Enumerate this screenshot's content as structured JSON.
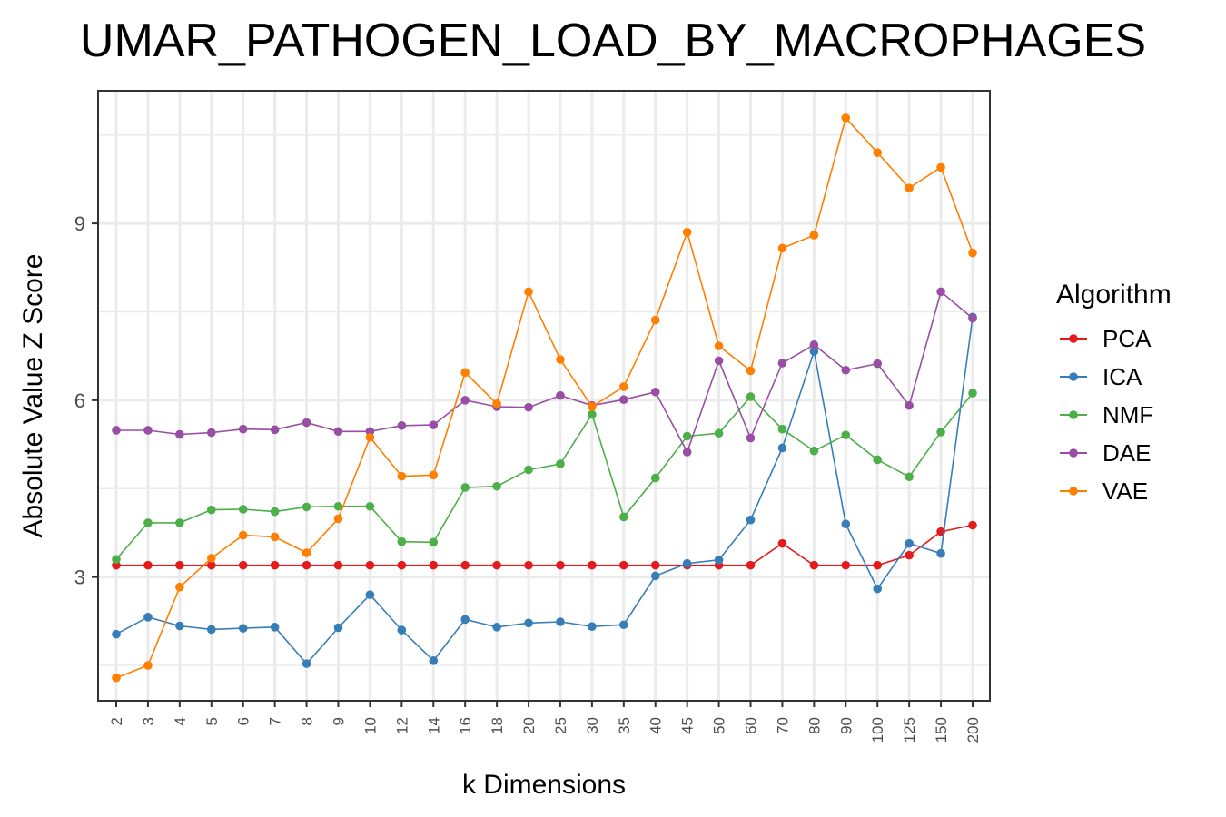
{
  "chart_data": {
    "type": "line",
    "title": "UMAR_PATHOGEN_LOAD_BY_MACROPHAGES",
    "xlabel": "k Dimensions",
    "ylabel": "Absolute Value Z Score",
    "categories": [
      "2",
      "3",
      "4",
      "5",
      "6",
      "7",
      "8",
      "9",
      "10",
      "12",
      "14",
      "16",
      "18",
      "20",
      "25",
      "30",
      "35",
      "40",
      "45",
      "50",
      "60",
      "70",
      "80",
      "90",
      "100",
      "125",
      "150",
      "200"
    ],
    "ylim": [
      0.9,
      11.25
    ],
    "yticks": [
      3,
      6,
      9
    ],
    "grid": true,
    "legend": {
      "title": "Algorithm",
      "position": "right"
    },
    "series": [
      {
        "name": "PCA",
        "color": "#E41A1C",
        "values": [
          3.2,
          3.2,
          3.2,
          3.2,
          3.2,
          3.2,
          3.2,
          3.2,
          3.2,
          3.2,
          3.2,
          3.2,
          3.2,
          3.2,
          3.2,
          3.2,
          3.2,
          3.2,
          3.2,
          3.2,
          3.2,
          3.57,
          3.2,
          3.2,
          3.2,
          3.37,
          3.77,
          3.88
        ]
      },
      {
        "name": "ICA",
        "color": "#377EB8",
        "values": [
          2.03,
          2.32,
          2.17,
          2.11,
          2.13,
          2.15,
          1.53,
          2.14,
          2.7,
          2.1,
          1.58,
          2.28,
          2.15,
          2.22,
          2.24,
          2.16,
          2.19,
          3.02,
          3.23,
          3.29,
          3.97,
          5.19,
          6.83,
          3.9,
          2.8,
          3.57,
          3.4,
          7.41
        ]
      },
      {
        "name": "NMF",
        "color": "#4DAF4A",
        "values": [
          3.3,
          3.92,
          3.92,
          4.14,
          4.15,
          4.11,
          4.19,
          4.2,
          4.2,
          3.6,
          3.59,
          4.52,
          4.54,
          4.82,
          4.92,
          5.76,
          4.02,
          4.68,
          5.39,
          5.44,
          6.06,
          5.51,
          5.14,
          5.41,
          4.99,
          4.7,
          5.46,
          6.12
        ]
      },
      {
        "name": "DAE",
        "color": "#984EA3",
        "values": [
          5.49,
          5.49,
          5.42,
          5.45,
          5.51,
          5.5,
          5.62,
          5.47,
          5.47,
          5.57,
          5.58,
          6.0,
          5.89,
          5.88,
          6.08,
          5.91,
          6.01,
          6.14,
          5.12,
          6.67,
          5.36,
          6.63,
          6.94,
          6.51,
          6.62,
          5.91,
          7.84,
          7.39
        ]
      },
      {
        "name": "VAE",
        "color": "#FF7F00",
        "values": [
          1.29,
          1.5,
          2.83,
          3.32,
          3.71,
          3.68,
          3.41,
          3.99,
          5.37,
          4.71,
          4.73,
          6.47,
          5.94,
          7.84,
          6.69,
          5.89,
          6.23,
          7.36,
          8.85,
          6.92,
          6.5,
          8.58,
          8.8,
          10.79,
          10.2,
          9.6,
          9.95,
          8.5
        ]
      }
    ]
  }
}
